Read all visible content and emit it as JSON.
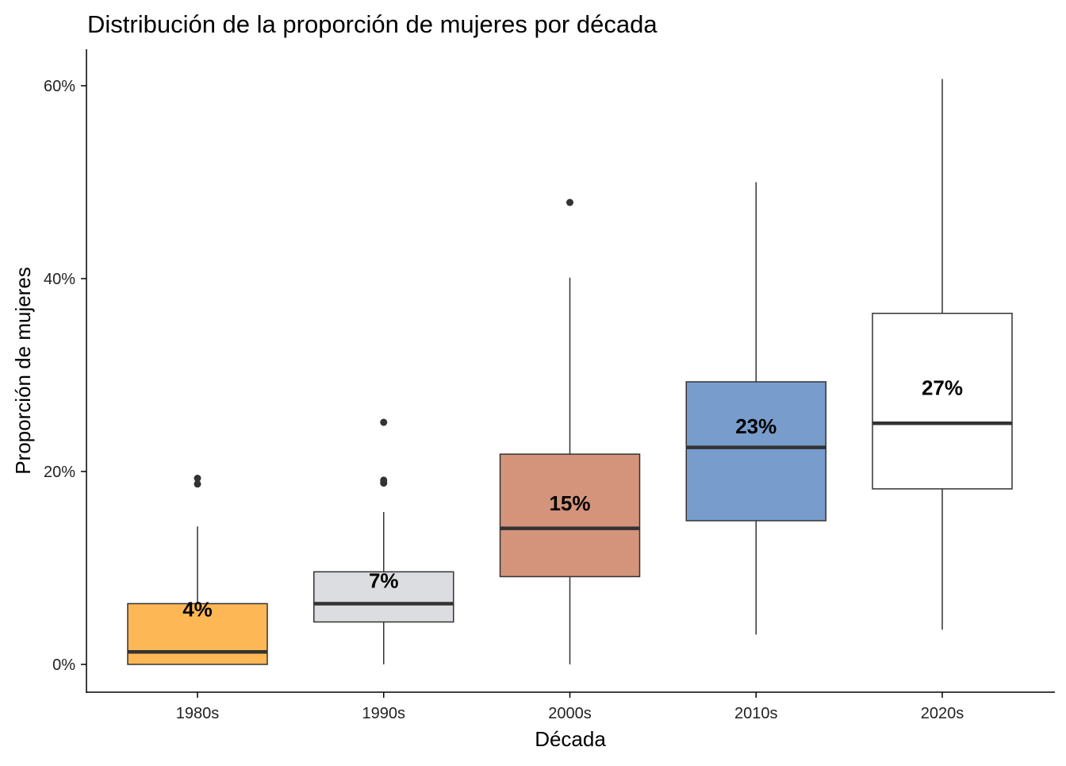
{
  "chart_data": {
    "type": "box",
    "title": "Distribución de la proporción de mujeres por década",
    "xlabel": "Década",
    "ylabel": "Proporción de mujeres",
    "ylim": [
      -3,
      63
    ],
    "yticks": [
      0,
      20,
      40,
      60
    ],
    "ytick_labels": [
      "0%",
      "20%",
      "40%",
      "60%"
    ],
    "grid": false,
    "categories": [
      "1980s",
      "1990s",
      "2000s",
      "2010s",
      "2020s"
    ],
    "boxes": [
      {
        "category": "1980s",
        "whisker_low": 0,
        "q1": 0,
        "median": 1.3,
        "q3": 6.3,
        "whisker_high": 14.3,
        "outliers": [
          18.7,
          19.3
        ],
        "label": "4%",
        "mean": 4,
        "color": "#FDB755"
      },
      {
        "category": "1990s",
        "whisker_low": 0,
        "q1": 4.4,
        "median": 6.3,
        "q3": 9.6,
        "whisker_high": 15.8,
        "outliers": [
          18.8,
          19.1,
          25.1
        ],
        "label": "7%",
        "mean": 7,
        "color": "#DCDDE0"
      },
      {
        "category": "2000s",
        "whisker_low": 0,
        "q1": 9.1,
        "median": 14.1,
        "q3": 21.8,
        "whisker_high": 40.1,
        "outliers": [
          47.9
        ],
        "label": "15%",
        "mean": 15,
        "color": "#D4937B"
      },
      {
        "category": "2010s",
        "whisker_low": 3.1,
        "q1": 14.9,
        "median": 22.5,
        "q3": 29.3,
        "whisker_high": 50.0,
        "outliers": [],
        "label": "23%",
        "mean": 23,
        "color": "#789DCC"
      },
      {
        "category": "2020s",
        "whisker_low": 3.6,
        "q1": 18.2,
        "median": 25.0,
        "q3": 36.4,
        "whisker_high": 60.7,
        "outliers": [],
        "label": "27%",
        "mean": 27,
        "color": "#FFFFFF"
      }
    ]
  }
}
